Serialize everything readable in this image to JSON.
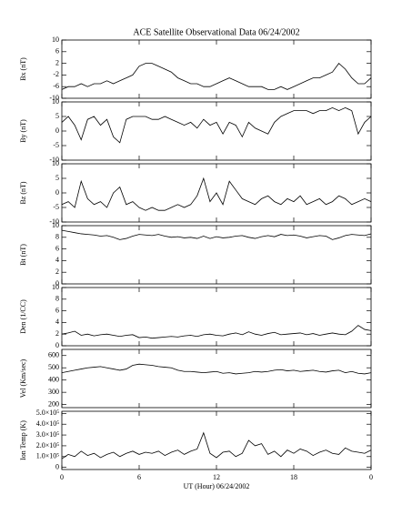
{
  "chart_data": [
    {
      "type": "line",
      "title": "ACE Satellite Observational Data   06/24/2002",
      "ylabel": "Bx (nT)",
      "color": "#000000",
      "x": [
        0,
        0.5,
        1,
        1.5,
        2,
        2.5,
        3,
        3.5,
        4,
        4.5,
        5,
        5.5,
        6,
        6.5,
        7,
        7.5,
        8,
        8.5,
        9,
        9.5,
        10,
        10.5,
        11,
        11.5,
        12,
        12.5,
        13,
        13.5,
        14,
        14.5,
        15,
        15.5,
        16,
        16.5,
        17,
        17.5,
        18,
        18.5,
        19,
        19.5,
        20,
        20.5,
        21,
        21.5,
        22,
        22.5,
        23,
        23.5,
        24
      ],
      "values": [
        -7,
        -6,
        -6,
        -5,
        -6,
        -5,
        -5,
        -4,
        -5,
        -4,
        -3,
        -2,
        1,
        2,
        2,
        1,
        0,
        -1,
        -3,
        -4,
        -5,
        -5,
        -6,
        -6,
        -5,
        -4,
        -3,
        -4,
        -5,
        -6,
        -6,
        -6,
        -7,
        -7,
        -6,
        -7,
        -6,
        -5,
        -4,
        -3,
        -3,
        -2,
        -1,
        2,
        0,
        -3,
        -5,
        -5,
        -3
      ],
      "xlim": [
        0,
        24
      ],
      "ylim": [
        -10,
        10
      ],
      "yticks": [
        -10,
        -6,
        -2,
        2,
        6,
        10
      ]
    },
    {
      "type": "line",
      "ylabel": "By (nT)",
      "color": "#000000",
      "x": [
        0,
        0.5,
        1,
        1.5,
        2,
        2.5,
        3,
        3.5,
        4,
        4.5,
        5,
        5.5,
        6,
        6.5,
        7,
        7.5,
        8,
        8.5,
        9,
        9.5,
        10,
        10.5,
        11,
        11.5,
        12,
        12.5,
        13,
        13.5,
        14,
        14.5,
        15,
        15.5,
        16,
        16.5,
        17,
        17.5,
        18,
        18.5,
        19,
        19.5,
        20,
        20.5,
        21,
        21.5,
        22,
        22.5,
        23,
        23.5,
        24
      ],
      "values": [
        3,
        5,
        2,
        -3,
        4,
        5,
        2,
        4,
        -2,
        -4,
        4,
        5,
        5,
        5,
        4,
        4,
        5,
        4,
        3,
        2,
        3,
        1,
        4,
        2,
        3,
        -1,
        3,
        2,
        -2,
        3,
        1,
        0,
        -1,
        3,
        5,
        6,
        7,
        7,
        7,
        6,
        7,
        7,
        8,
        7,
        8,
        7,
        -1,
        3,
        5
      ],
      "xlim": [
        0,
        24
      ],
      "ylim": [
        -10,
        10
      ],
      "yticks": [
        -10,
        -5,
        0,
        5,
        10
      ]
    },
    {
      "type": "line",
      "ylabel": "Bz (nT)",
      "color": "#000000",
      "x": [
        0,
        0.5,
        1,
        1.5,
        2,
        2.5,
        3,
        3.5,
        4,
        4.5,
        5,
        5.5,
        6,
        6.5,
        7,
        7.5,
        8,
        8.5,
        9,
        9.5,
        10,
        10.5,
        11,
        11.5,
        12,
        12.5,
        13,
        13.5,
        14,
        14.5,
        15,
        15.5,
        16,
        16.5,
        17,
        17.5,
        18,
        18.5,
        19,
        19.5,
        20,
        20.5,
        21,
        21.5,
        22,
        22.5,
        23,
        23.5,
        24
      ],
      "values": [
        -4,
        -3,
        -5,
        4,
        -2,
        -4,
        -3,
        -5,
        0,
        2,
        -4,
        -3,
        -5,
        -6,
        -5,
        -6,
        -6,
        -5,
        -4,
        -5,
        -4,
        -1,
        5,
        -3,
        0,
        -4,
        4,
        1,
        -2,
        -3,
        -4,
        -2,
        -1,
        -3,
        -4,
        -2,
        -3,
        -1,
        -4,
        -3,
        -2,
        -4,
        -3,
        -1,
        -2,
        -4,
        -3,
        -2,
        -3
      ],
      "xlim": [
        0,
        24
      ],
      "ylim": [
        -10,
        10
      ],
      "yticks": [
        -10,
        -5,
        0,
        5,
        10
      ]
    },
    {
      "type": "line",
      "ylabel": "Bt (nT)",
      "color": "#000000",
      "x": [
        0,
        0.5,
        1,
        1.5,
        2,
        2.5,
        3,
        3.5,
        4,
        4.5,
        5,
        5.5,
        6,
        6.5,
        7,
        7.5,
        8,
        8.5,
        9,
        9.5,
        10,
        10.5,
        11,
        11.5,
        12,
        12.5,
        13,
        13.5,
        14,
        14.5,
        15,
        15.5,
        16,
        16.5,
        17,
        17.5,
        18,
        18.5,
        19,
        19.5,
        20,
        20.5,
        21,
        21.5,
        22,
        22.5,
        23,
        23.5,
        24
      ],
      "values": [
        9.2,
        9,
        8.8,
        8.6,
        8.5,
        8.4,
        8.2,
        8.3,
        8,
        7.6,
        7.8,
        8.2,
        8.5,
        8.4,
        8.3,
        8.5,
        8.2,
        8,
        8.1,
        7.9,
        8,
        7.8,
        8.2,
        7.8,
        8.1,
        7.9,
        8,
        8.2,
        8.3,
        8,
        7.8,
        8.1,
        8.3,
        8.1,
        8.5,
        8.3,
        8.4,
        8.2,
        7.9,
        8.1,
        8.3,
        8.2,
        7.6,
        7.9,
        8.3,
        8.5,
        8.4,
        8.3,
        8.6
      ],
      "xlim": [
        0,
        24
      ],
      "ylim": [
        0,
        10
      ],
      "yticks": [
        0,
        2,
        4,
        6,
        8,
        10
      ]
    },
    {
      "type": "line",
      "ylabel": "Den (1/CC)",
      "color": "#000000",
      "x": [
        0,
        0.5,
        1,
        1.5,
        2,
        2.5,
        3,
        3.5,
        4,
        4.5,
        5,
        5.5,
        6,
        6.5,
        7,
        7.5,
        8,
        8.5,
        9,
        9.5,
        10,
        10.5,
        11,
        11.5,
        12,
        12.5,
        13,
        13.5,
        14,
        14.5,
        15,
        15.5,
        16,
        16.5,
        17,
        17.5,
        18,
        18.5,
        19,
        19.5,
        20,
        20.5,
        21,
        21.5,
        22,
        22.5,
        23,
        23.5,
        24
      ],
      "values": [
        2,
        2.2,
        2.5,
        1.8,
        2,
        1.7,
        1.9,
        2,
        1.8,
        1.6,
        1.8,
        1.9,
        1.4,
        1.5,
        1.3,
        1.4,
        1.5,
        1.6,
        1.5,
        1.7,
        1.8,
        1.6,
        1.9,
        2,
        1.8,
        1.7,
        2,
        2.2,
        1.9,
        2.4,
        2,
        1.8,
        2.1,
        2.3,
        1.9,
        2,
        2.1,
        2.2,
        1.9,
        2.1,
        1.8,
        2,
        2.2,
        2,
        1.9,
        2.5,
        3.5,
        2.8,
        2.6
      ],
      "xlim": [
        0,
        24
      ],
      "ylim": [
        0,
        10
      ],
      "yticks": [
        0,
        2,
        4,
        6,
        8,
        10
      ]
    },
    {
      "type": "line",
      "ylabel": "Vel (Km/sec)",
      "color": "#000000",
      "x": [
        0,
        0.5,
        1,
        1.5,
        2,
        2.5,
        3,
        3.5,
        4,
        4.5,
        5,
        5.5,
        6,
        6.5,
        7,
        7.5,
        8,
        8.5,
        9,
        9.5,
        10,
        10.5,
        11,
        11.5,
        12,
        12.5,
        13,
        13.5,
        14,
        14.5,
        15,
        15.5,
        16,
        16.5,
        17,
        17.5,
        18,
        18.5,
        19,
        19.5,
        20,
        20.5,
        21,
        21.5,
        22,
        22.5,
        23,
        23.5,
        24
      ],
      "values": [
        460,
        470,
        480,
        490,
        500,
        505,
        510,
        500,
        490,
        480,
        490,
        520,
        530,
        525,
        520,
        510,
        505,
        500,
        480,
        470,
        470,
        465,
        460,
        465,
        470,
        455,
        460,
        450,
        455,
        460,
        470,
        465,
        470,
        480,
        485,
        475,
        480,
        470,
        475,
        480,
        470,
        465,
        475,
        480,
        460,
        470,
        455,
        450,
        460
      ],
      "xlim": [
        0,
        24
      ],
      "ylim": [
        175,
        650
      ],
      "yticks": [
        200,
        300,
        400,
        500,
        600
      ]
    },
    {
      "type": "line",
      "ylabel": "Ion Temp (K)",
      "color": "#000000",
      "xlabel": "UT (Hour)  06/24/2002",
      "x": [
        0,
        0.5,
        1,
        1.5,
        2,
        2.5,
        3,
        3.5,
        4,
        4.5,
        5,
        5.5,
        6,
        6.5,
        7,
        7.5,
        8,
        8.5,
        9,
        9.5,
        10,
        10.5,
        11,
        11.5,
        12,
        12.5,
        13,
        13.5,
        14,
        14.5,
        15,
        15.5,
        16,
        16.5,
        17,
        17.5,
        18,
        18.5,
        19,
        19.5,
        20,
        20.5,
        21,
        21.5,
        22,
        22.5,
        23,
        23.5,
        24
      ],
      "values": [
        80000,
        120000,
        100000,
        150000,
        110000,
        130000,
        90000,
        120000,
        140000,
        100000,
        130000,
        150000,
        120000,
        140000,
        130000,
        150000,
        110000,
        140000,
        160000,
        120000,
        150000,
        170000,
        320000,
        130000,
        90000,
        140000,
        150000,
        100000,
        130000,
        250000,
        200000,
        220000,
        120000,
        150000,
        100000,
        160000,
        130000,
        170000,
        150000,
        110000,
        140000,
        160000,
        130000,
        120000,
        180000,
        150000,
        140000,
        130000,
        160000
      ],
      "xlim": [
        0,
        24
      ],
      "ylim": [
        -20000,
        520000
      ],
      "yticks": [
        0,
        {
          "value": 100000,
          "label": "1.0×10⁵"
        },
        {
          "value": 200000,
          "label": "2.0×10⁵"
        },
        {
          "value": 300000,
          "label": "3.0×10⁵"
        },
        {
          "value": 400000,
          "label": "4.0×10⁵"
        },
        {
          "value": 500000,
          "label": "5.0×10⁵"
        }
      ],
      "xticks": [
        0,
        6,
        12,
        18,
        {
          "value": 24,
          "label": "0"
        }
      ]
    }
  ]
}
